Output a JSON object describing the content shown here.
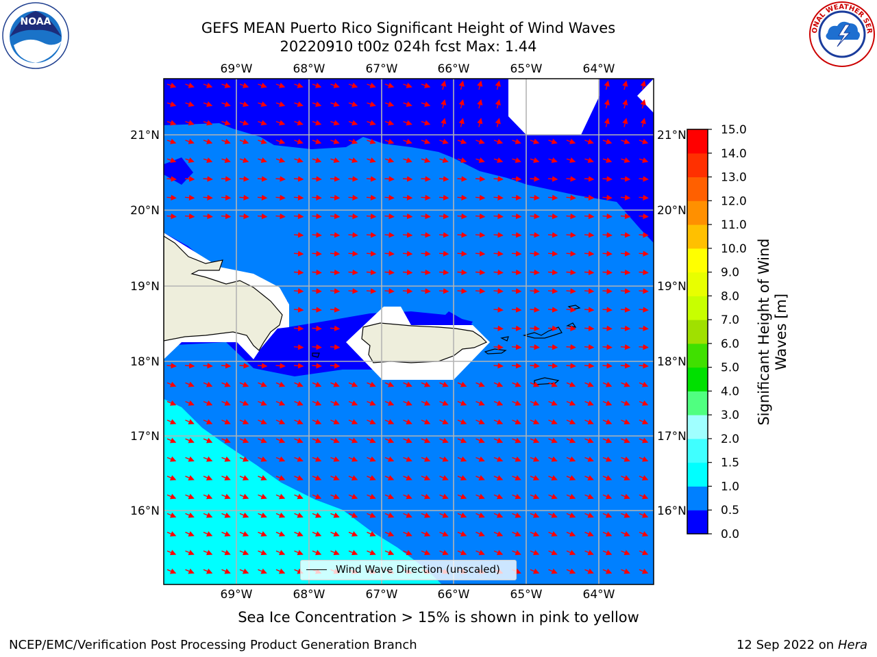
{
  "title_line1": "GEFS MEAN Puerto Rico Significant Height of Wind Waves",
  "title_line2": "20220910 t00z 024h fcst   Max: 1.44",
  "lon_labels": [
    "69°W",
    "68°W",
    "67°W",
    "66°W",
    "65°W",
    "64°W"
  ],
  "lat_labels": [
    "21°N",
    "20°N",
    "19°N",
    "18°N",
    "17°N",
    "16°N"
  ],
  "legend_label": "Wind Wave Direction (unscaled)",
  "colorbar": {
    "title_line1": "Significant Height of Wind",
    "title_line2": "Waves [m]",
    "ticks": [
      "0.0",
      "0.5",
      "1.0",
      "1.5",
      "2.0",
      "3.0",
      "4.0",
      "5.0",
      "6.0",
      "7.0",
      "8.0",
      "9.0",
      "10.0",
      "11.0",
      "12.0",
      "13.0",
      "14.0",
      "15.0"
    ],
    "colors": [
      "#0000ff",
      "#0080ff",
      "#00ffff",
      "#40ffff",
      "#a0ffff",
      "#50ff80",
      "#00e000",
      "#40e000",
      "#a0e000",
      "#c8ff00",
      "#e8ff00",
      "#ffff00",
      "#ffc000",
      "#ff9000",
      "#ff6000",
      "#ff3000",
      "#ff0000"
    ]
  },
  "map_colors": {
    "band_0_0_5": "#0000ff",
    "band_0_5_1_0": "#0080ff",
    "band_1_0_1_5": "#00ffff",
    "land": "#eeeedc",
    "arrow": "#ff0000",
    "grid": "#b4b4b4"
  },
  "note": "Sea Ice Concentration > 15% is shown in pink to yellow",
  "footer_left": "NCEP/EMC/Verification Post Processing Product Generation Branch",
  "footer_right_date": "12 Sep 2022 on",
  "footer_right_host": "Hera",
  "logos": {
    "left": "NOAA",
    "right": "NATIONAL WEATHER SERVICE"
  }
}
